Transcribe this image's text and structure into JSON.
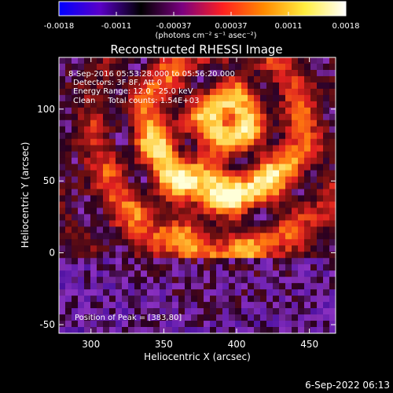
{
  "colorbar": {
    "ticks": [
      "-0.0018",
      "-0.0011",
      "-0.00037",
      "0.00037",
      "0.0011",
      "0.0018"
    ],
    "units_label": "(photons cm⁻² s⁻¹ asec⁻²)",
    "colors": [
      "#0000ff",
      "#5a00c8",
      "#000000",
      "#7a0080",
      "#ff2020",
      "#ff8a00",
      "#ffee40",
      "#ffffff"
    ]
  },
  "chart_data": {
    "type": "heatmap",
    "title": "Reconstructed RHESSI Image",
    "xlabel": "Heliocentric X (arcsec)",
    "ylabel": "Heliocentric Y (arcsec)",
    "xlim": [
      278,
      468
    ],
    "ylim": [
      -56,
      136
    ],
    "xticks": [
      300,
      350,
      400,
      450
    ],
    "yticks": [
      -50,
      0,
      50,
      100
    ],
    "annotations": [
      "8-Sep-2016 05:53:28.000 to 05:56:20.000",
      "Detectors: 3F 8F, Att 0",
      "Energy Range: 12.0 - 25.0 keV",
      "Clean     Total counts: 1.54E+03"
    ],
    "peak_label": "Position of Peak = [383,80]",
    "peak": [
      383,
      80
    ]
  },
  "footer": {
    "timestamp": "6-Sep-2022 06:13"
  }
}
